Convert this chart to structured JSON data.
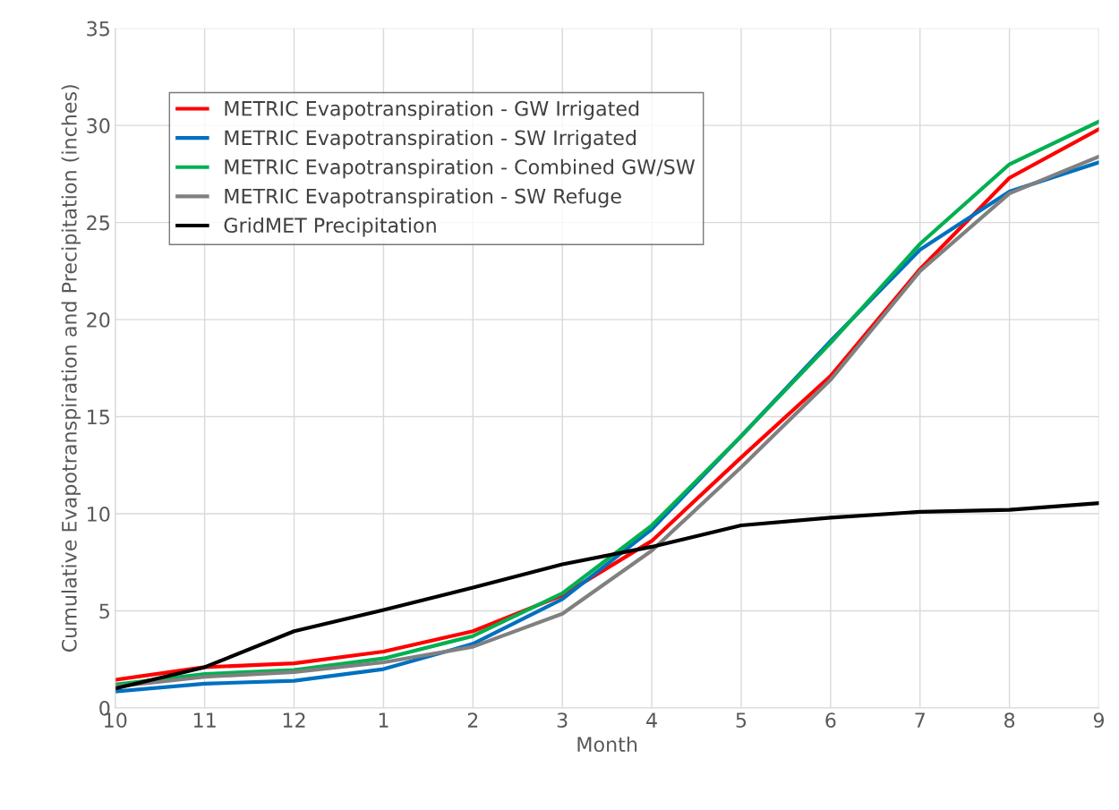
{
  "chart_data": {
    "type": "line",
    "xlabel": "Month",
    "ylabel": "Cumulative Evapotranspiration and Precipitation (inches)",
    "categories": [
      "10",
      "11",
      "12",
      "1",
      "2",
      "3",
      "4",
      "5",
      "6",
      "7",
      "8",
      "9"
    ],
    "series": [
      {
        "name": "METRIC Evapotranspiration - GW Irrigated",
        "color": "#ff0000",
        "values": [
          1.45,
          2.1,
          2.3,
          2.9,
          3.95,
          5.8,
          8.6,
          12.9,
          17.1,
          22.6,
          27.3,
          29.8
        ]
      },
      {
        "name": "METRIC Evapotranspiration - SW Irrigated",
        "color": "#0070c0",
        "values": [
          0.85,
          1.25,
          1.4,
          2.0,
          3.3,
          5.6,
          9.2,
          14.0,
          18.9,
          23.6,
          26.6,
          28.1
        ]
      },
      {
        "name": "METRIC Evapotranspiration - Combined GW/SW",
        "color": "#00b050",
        "values": [
          1.2,
          1.75,
          1.95,
          2.55,
          3.7,
          5.9,
          9.4,
          14.0,
          18.8,
          23.9,
          28.0,
          30.2
        ]
      },
      {
        "name": "METRIC Evapotranspiration - SW Refuge",
        "color": "#808080",
        "values": [
          1.1,
          1.6,
          1.85,
          2.35,
          3.15,
          4.85,
          8.1,
          12.4,
          16.9,
          22.5,
          26.5,
          28.4
        ]
      },
      {
        "name": "GridMET Precipitation",
        "color": "#000000",
        "values": [
          1.0,
          2.1,
          3.95,
          5.05,
          6.2,
          7.4,
          8.3,
          9.4,
          9.8,
          10.1,
          10.2,
          10.55
        ]
      }
    ],
    "ylim": [
      0,
      35
    ],
    "yticks": [
      0,
      5,
      10,
      15,
      20,
      25,
      30,
      35
    ],
    "grid": true,
    "legend": "top left",
    "marker": "none",
    "line_style": "solid"
  }
}
